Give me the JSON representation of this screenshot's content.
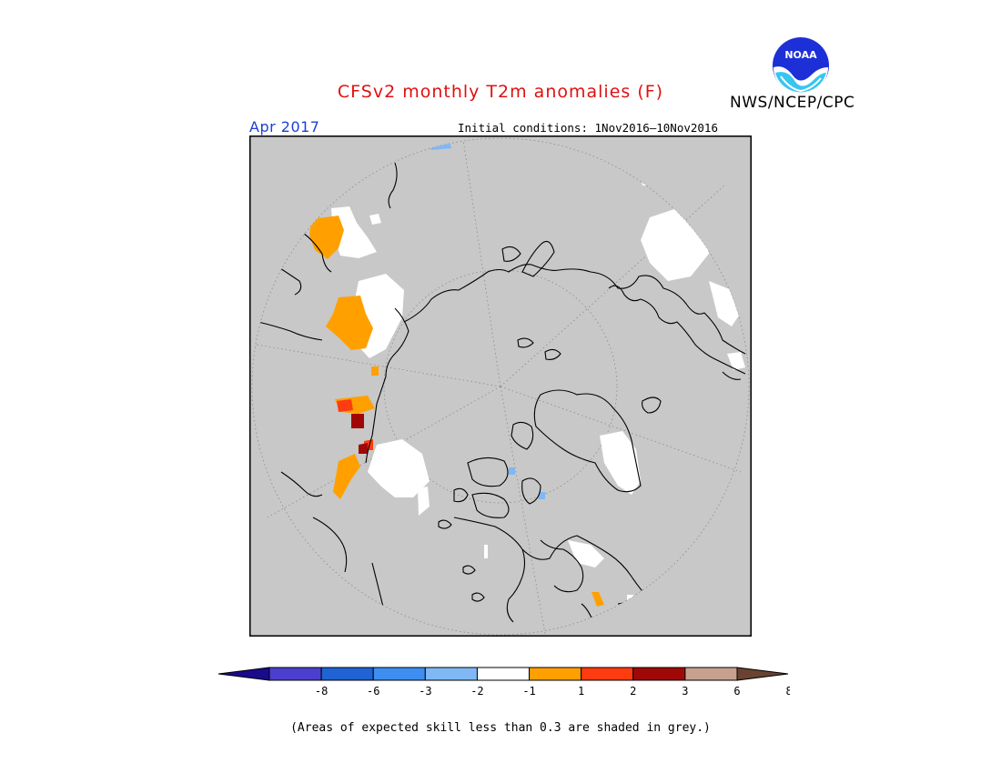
{
  "header": {
    "title": "CFSv2 monthly T2m anomalies (F)",
    "agency": "NWS/NCEP/CPC",
    "logo_text": "NOAA",
    "month": "Apr 2017",
    "initial_conditions": "Initial conditions: 1Nov2016–10Nov2016"
  },
  "map": {
    "projection": "polar-stereographic-north",
    "background_color": "#c8c8c8",
    "land_outline_color": "#000000",
    "gridline_style": "dotted-grey"
  },
  "colorbar": {
    "tick_labels": [
      "-8",
      "-6",
      "-3",
      "-2",
      "-1",
      "1",
      "2",
      "3",
      "6",
      "8"
    ],
    "colors": [
      "#1a0a8c",
      "#4b3fcf",
      "#1f63d4",
      "#3d8ef0",
      "#7fb8f5",
      "#ffffff",
      "#ffa000",
      "#ff3b10",
      "#a00808",
      "#c8a090",
      "#6a4232"
    ]
  },
  "footnote": "(Areas of expected skill less than 0.3 are shaded in grey.)"
}
